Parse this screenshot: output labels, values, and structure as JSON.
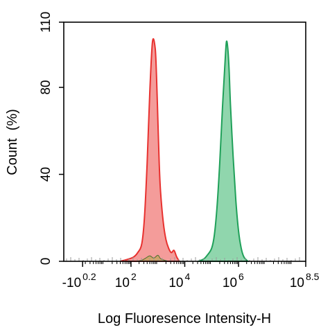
{
  "chart_data": {
    "type": "area",
    "xlabel": "Log Fluoresence Intensity-H",
    "ylabel": "Count  (%)",
    "ylim": [
      0,
      110
    ],
    "x_scale": "log",
    "xlim": [
      -0.5,
      8.5
    ],
    "y_ticks": [
      "0",
      "40",
      "80",
      "110"
    ],
    "y_tick_values": [
      0,
      40,
      80,
      110
    ],
    "x_ticks": [
      {
        "base": "-10",
        "exp": "0.2",
        "pos": 0.2
      },
      {
        "base": "10",
        "exp": "2",
        "pos": 2
      },
      {
        "base": "10",
        "exp": "4",
        "pos": 4
      },
      {
        "base": "10",
        "exp": "6",
        "pos": 6
      },
      {
        "base": "10",
        "exp": "8.5",
        "pos": 8.5
      }
    ],
    "grid": false,
    "legend": "none",
    "series": [
      {
        "color": "#e8312f",
        "fill": "#f28b88",
        "x": [
          1.6,
          1.9,
          2.1,
          2.25,
          2.4,
          2.5,
          2.6,
          2.7,
          2.8,
          2.9,
          2.95,
          3.0,
          3.05,
          3.1,
          3.2,
          3.3,
          3.4,
          3.5,
          3.6,
          3.7,
          3.8
        ],
        "values": [
          0,
          1,
          2,
          4,
          8,
          20,
          45,
          78,
          101,
          98,
          85,
          65,
          45,
          32,
          18,
          10,
          6,
          4,
          5,
          2,
          0
        ]
      },
      {
        "color": "#1fa059",
        "fill": "#7dcf9f",
        "x": [
          4.5,
          4.7,
          4.85,
          5.0,
          5.1,
          5.2,
          5.3,
          5.4,
          5.5,
          5.55,
          5.6,
          5.65,
          5.7,
          5.8,
          5.9,
          6.0,
          6.1,
          6.2,
          6.35
        ],
        "values": [
          0,
          1,
          3,
          6,
          12,
          25,
          45,
          70,
          92,
          101,
          98,
          88,
          72,
          48,
          28,
          14,
          6,
          2,
          0
        ]
      },
      {
        "color": "#4a6e2e",
        "fill": "#c7a35f",
        "x": [
          2.2,
          2.4,
          2.55,
          2.7,
          2.85,
          3.0,
          3.1,
          3.25,
          3.4
        ],
        "values": [
          0,
          0.5,
          1.5,
          2.5,
          1.5,
          2.8,
          1.2,
          0.5,
          0
        ]
      }
    ]
  }
}
